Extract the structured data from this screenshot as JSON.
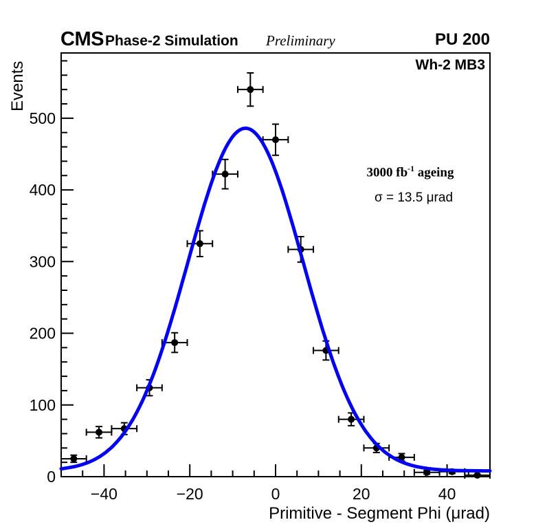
{
  "header": {
    "experiment": "CMS",
    "label": "Phase-2 Simulation",
    "sublabel": "Preliminary",
    "pileup": "PU 200"
  },
  "annotations": {
    "corner_label": "Wh-2 MB3",
    "ageing": {
      "pre": "3000 fb",
      "sup": "-1",
      "post": " ageing"
    },
    "sigma": "σ = 13.5 μrad"
  },
  "chart_data": {
    "type": "scatter",
    "title": "",
    "xlabel": "Primitive - Segment Phi (μrad)",
    "ylabel": "Events",
    "xlim": [
      -50,
      50
    ],
    "ylim": [
      0,
      591
    ],
    "grid": false,
    "x_major_ticks": [
      -40,
      -20,
      0,
      20,
      40
    ],
    "x_tick_labels": [
      "−40",
      "−20",
      "0",
      "20",
      "40"
    ],
    "x_minor_step": 5,
    "y_major_ticks": [
      0,
      100,
      200,
      300,
      400,
      500
    ],
    "y_tick_labels": [
      "0",
      "100",
      "200",
      "300",
      "400",
      "500"
    ],
    "y_minor_step": 20,
    "series": [
      {
        "name": "3000 fb-1 ageing data points",
        "marker": "filled-circle",
        "marker_color": "#000000",
        "marker_radius": 5,
        "x": [
          -47.06,
          -41.18,
          -35.29,
          -29.41,
          -23.53,
          -17.65,
          -11.76,
          -5.88,
          0,
          5.88,
          11.76,
          17.65,
          23.53,
          29.41,
          35.29,
          41.18,
          47.06
        ],
        "y": [
          25,
          62,
          67,
          124,
          187,
          325,
          422,
          540,
          470,
          317,
          176,
          80,
          40,
          27,
          6,
          7,
          2
        ],
        "xerr": 2.94,
        "yerr": [
          5.0,
          7.9,
          8.2,
          11.1,
          13.7,
          18.0,
          20.5,
          23.2,
          21.7,
          17.8,
          13.3,
          8.9,
          6.3,
          5.2,
          2.4,
          2.6,
          1.4
        ]
      }
    ],
    "fit": {
      "name": "gaussian-fit",
      "model": "constant + amplitude * exp(-0.5*((x-mean)/sigma)^2)",
      "amplitude": 478,
      "mean": -7.0,
      "sigma": 13.5,
      "constant": 8,
      "color": "#0404f0",
      "line_width": 5
    },
    "axis_color": "#000000"
  }
}
